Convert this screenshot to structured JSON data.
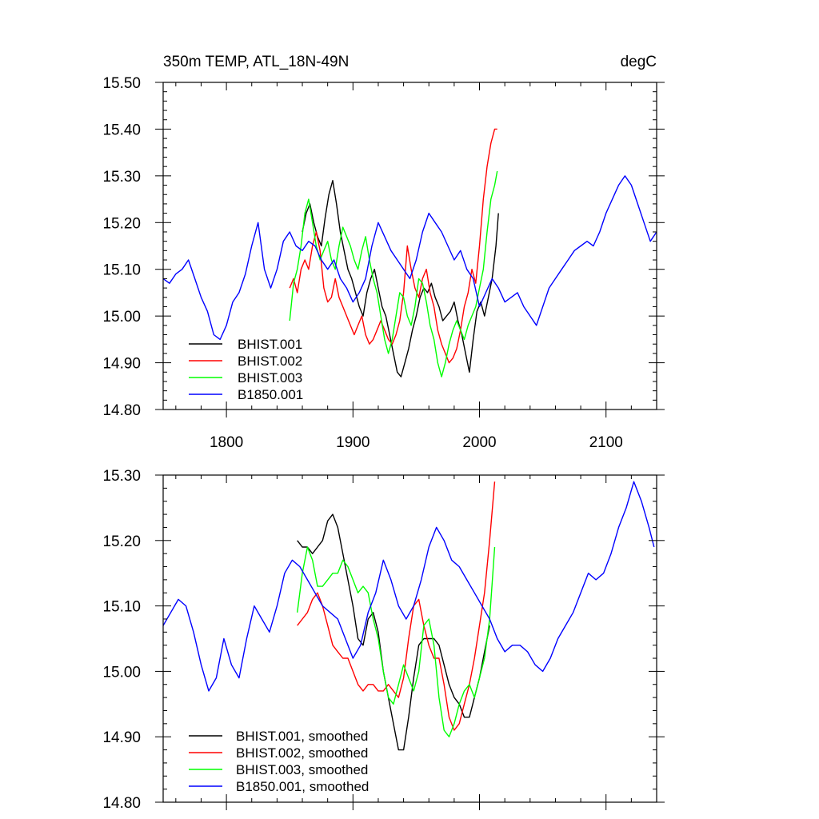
{
  "chart_data": [
    {
      "type": "line",
      "title_left": "350m TEMP, ATL_18N-49N",
      "title_right": "degC",
      "xlim": [
        1750,
        2140
      ],
      "ylim": [
        14.8,
        15.5
      ],
      "xticks": [
        1800,
        1900,
        2000,
        2100
      ],
      "xtick_labels": [
        "1800",
        "1900",
        "2000",
        "2100"
      ],
      "yticks": [
        14.8,
        14.9,
        15.0,
        15.1,
        15.2,
        15.3,
        15.4,
        15.5
      ],
      "ytick_labels": [
        "14.80",
        "14.90",
        "15.00",
        "15.10",
        "15.20",
        "15.30",
        "15.40",
        "15.50"
      ],
      "legend": "bottom-left",
      "series": [
        {
          "name": "BHIST.001",
          "color": "#000000",
          "x": [
            1860,
            1863,
            1866,
            1869,
            1872,
            1875,
            1878,
            1881,
            1884,
            1887,
            1890,
            1893,
            1896,
            1899,
            1902,
            1905,
            1908,
            1911,
            1914,
            1917,
            1920,
            1923,
            1926,
            1929,
            1932,
            1935,
            1938,
            1941,
            1944,
            1947,
            1950,
            1953,
            1956,
            1959,
            1962,
            1965,
            1968,
            1971,
            1974,
            1977,
            1980,
            1983,
            1986,
            1989,
            1992,
            1995,
            1998,
            2001,
            2004,
            2007,
            2010,
            2013,
            2015
          ],
          "y": [
            15.18,
            15.22,
            15.24,
            15.2,
            15.17,
            15.15,
            15.21,
            15.26,
            15.29,
            15.24,
            15.18,
            15.14,
            15.1,
            15.08,
            15.05,
            15.02,
            15.0,
            15.05,
            15.08,
            15.1,
            15.06,
            15.02,
            15.0,
            14.96,
            14.92,
            14.88,
            14.87,
            14.9,
            14.93,
            14.97,
            15.0,
            15.04,
            15.06,
            15.05,
            15.07,
            15.04,
            15.02,
            14.99,
            15.0,
            15.01,
            15.03,
            14.99,
            14.96,
            14.92,
            14.88,
            14.95,
            15.01,
            15.03,
            15.0,
            15.04,
            15.08,
            15.15,
            15.22
          ]
        },
        {
          "name": "BHIST.002",
          "color": "#ff0000",
          "x": [
            1850,
            1853,
            1856,
            1859,
            1862,
            1865,
            1868,
            1871,
            1874,
            1877,
            1880,
            1883,
            1886,
            1889,
            1892,
            1895,
            1898,
            1901,
            1904,
            1907,
            1910,
            1913,
            1916,
            1919,
            1922,
            1925,
            1928,
            1931,
            1934,
            1937,
            1940,
            1943,
            1946,
            1949,
            1952,
            1955,
            1958,
            1961,
            1964,
            1967,
            1970,
            1973,
            1976,
            1979,
            1982,
            1985,
            1988,
            1991,
            1994,
            1997,
            2000,
            2003,
            2006,
            2009,
            2012,
            2014
          ],
          "y": [
            15.06,
            15.08,
            15.05,
            15.1,
            15.12,
            15.1,
            15.15,
            15.18,
            15.14,
            15.06,
            15.03,
            15.04,
            15.08,
            15.04,
            15.02,
            15.0,
            14.98,
            14.96,
            14.98,
            15.0,
            14.96,
            14.94,
            14.95,
            14.97,
            14.99,
            14.97,
            14.95,
            14.94,
            14.96,
            14.99,
            15.05,
            15.15,
            15.1,
            15.06,
            15.04,
            15.08,
            15.1,
            15.05,
            15.02,
            14.97,
            14.94,
            14.92,
            14.9,
            14.91,
            14.93,
            14.97,
            15.02,
            15.05,
            15.1,
            15.07,
            15.15,
            15.25,
            15.32,
            15.37,
            15.4,
            15.4
          ]
        },
        {
          "name": "BHIST.003",
          "color": "#00ff00",
          "x": [
            1850,
            1853,
            1856,
            1859,
            1862,
            1865,
            1868,
            1871,
            1874,
            1877,
            1880,
            1883,
            1886,
            1889,
            1892,
            1895,
            1898,
            1901,
            1904,
            1907,
            1910,
            1913,
            1916,
            1919,
            1922,
            1925,
            1928,
            1931,
            1934,
            1937,
            1940,
            1943,
            1946,
            1949,
            1952,
            1955,
            1958,
            1961,
            1964,
            1967,
            1970,
            1973,
            1976,
            1979,
            1982,
            1985,
            1988,
            1991,
            1994,
            1997,
            2000,
            2003,
            2006,
            2009,
            2012,
            2014
          ],
          "y": [
            14.99,
            15.07,
            15.1,
            15.15,
            15.22,
            15.25,
            15.2,
            15.15,
            15.12,
            15.14,
            15.16,
            15.12,
            15.1,
            15.15,
            15.19,
            15.17,
            15.15,
            15.12,
            15.1,
            15.14,
            15.17,
            15.12,
            15.08,
            15.05,
            15.0,
            14.95,
            14.92,
            14.95,
            15.0,
            15.05,
            15.04,
            15.0,
            14.98,
            15.02,
            15.08,
            15.07,
            15.03,
            14.98,
            14.95,
            14.9,
            14.87,
            14.9,
            14.94,
            14.97,
            14.99,
            14.97,
            14.95,
            14.98,
            15.0,
            15.02,
            15.06,
            15.1,
            15.18,
            15.25,
            15.28,
            15.31
          ]
        },
        {
          "name": "B1850.001",
          "color": "#0000ff",
          "x": [
            1750,
            1755,
            1760,
            1765,
            1770,
            1775,
            1780,
            1785,
            1790,
            1795,
            1800,
            1805,
            1810,
            1815,
            1820,
            1825,
            1830,
            1835,
            1840,
            1845,
            1850,
            1855,
            1860,
            1865,
            1870,
            1875,
            1880,
            1885,
            1890,
            1895,
            1900,
            1905,
            1910,
            1915,
            1920,
            1925,
            1930,
            1935,
            1940,
            1945,
            1950,
            1955,
            1960,
            1965,
            1970,
            1975,
            1980,
            1985,
            1990,
            1995,
            2000,
            2005,
            2010,
            2015,
            2020,
            2025,
            2030,
            2035,
            2040,
            2045,
            2050,
            2055,
            2060,
            2065,
            2070,
            2075,
            2080,
            2085,
            2090,
            2095,
            2100,
            2105,
            2110,
            2115,
            2120,
            2125,
            2130,
            2135,
            2140
          ],
          "y": [
            15.08,
            15.07,
            15.09,
            15.1,
            15.12,
            15.08,
            15.04,
            15.01,
            14.96,
            14.95,
            14.98,
            15.03,
            15.05,
            15.09,
            15.15,
            15.2,
            15.1,
            15.06,
            15.1,
            15.16,
            15.18,
            15.15,
            15.14,
            15.16,
            15.15,
            15.12,
            15.1,
            15.12,
            15.08,
            15.06,
            15.03,
            15.05,
            15.08,
            15.15,
            15.2,
            15.17,
            15.14,
            15.12,
            15.1,
            15.08,
            15.12,
            15.18,
            15.22,
            15.2,
            15.18,
            15.15,
            15.12,
            15.14,
            15.1,
            15.08,
            15.02,
            15.05,
            15.08,
            15.06,
            15.03,
            15.04,
            15.05,
            15.02,
            15.0,
            14.98,
            15.02,
            15.06,
            15.08,
            15.1,
            15.12,
            15.14,
            15.15,
            15.16,
            15.15,
            15.18,
            15.22,
            15.25,
            15.28,
            15.3,
            15.28,
            15.24,
            15.2,
            15.16,
            15.18
          ]
        }
      ]
    },
    {
      "type": "line",
      "xlim": [
        1750,
        2140
      ],
      "ylim": [
        14.8,
        15.3
      ],
      "xticks": [
        1800,
        1900,
        2000,
        2100
      ],
      "yticks": [
        14.8,
        14.9,
        15.0,
        15.1,
        15.2,
        15.3
      ],
      "ytick_labels": [
        "14.80",
        "14.90",
        "15.00",
        "15.10",
        "15.20",
        "15.30"
      ],
      "legend": "bottom-left",
      "series": [
        {
          "name": "BHIST.001, smoothed",
          "color": "#000000",
          "x": [
            1856,
            1860,
            1864,
            1868,
            1872,
            1876,
            1880,
            1884,
            1888,
            1892,
            1896,
            1900,
            1904,
            1908,
            1912,
            1916,
            1920,
            1924,
            1928,
            1932,
            1936,
            1940,
            1944,
            1948,
            1952,
            1956,
            1960,
            1964,
            1968,
            1972,
            1976,
            1980,
            1984,
            1988,
            1992,
            1996,
            2000,
            2004,
            2008
          ],
          "y": [
            15.2,
            15.19,
            15.19,
            15.18,
            15.19,
            15.2,
            15.23,
            15.24,
            15.22,
            15.18,
            15.14,
            15.1,
            15.05,
            15.04,
            15.08,
            15.09,
            15.06,
            15.0,
            14.96,
            14.92,
            14.88,
            14.88,
            14.93,
            14.99,
            15.04,
            15.05,
            15.05,
            15.05,
            15.04,
            15.01,
            14.98,
            14.96,
            14.95,
            14.93,
            14.93,
            14.96,
            14.99,
            15.03,
            15.07
          ]
        },
        {
          "name": "BHIST.002, smoothed",
          "color": "#ff0000",
          "x": [
            1856,
            1860,
            1864,
            1868,
            1872,
            1876,
            1880,
            1884,
            1888,
            1892,
            1896,
            1900,
            1904,
            1908,
            1912,
            1916,
            1920,
            1924,
            1928,
            1932,
            1936,
            1940,
            1944,
            1948,
            1952,
            1956,
            1960,
            1964,
            1968,
            1972,
            1976,
            1980,
            1984,
            1988,
            1992,
            1996,
            2000,
            2004,
            2008,
            2012
          ],
          "y": [
            15.07,
            15.08,
            15.09,
            15.11,
            15.12,
            15.1,
            15.07,
            15.04,
            15.03,
            15.02,
            15.02,
            15.0,
            14.98,
            14.97,
            14.98,
            14.98,
            14.97,
            14.97,
            14.98,
            14.97,
            14.96,
            14.99,
            15.05,
            15.1,
            15.11,
            15.07,
            15.04,
            15.02,
            15.02,
            14.98,
            14.93,
            14.91,
            14.92,
            14.95,
            14.98,
            15.02,
            15.07,
            15.12,
            15.2,
            15.29
          ]
        },
        {
          "name": "BHIST.003, smoothed",
          "color": "#00ff00",
          "x": [
            1856,
            1860,
            1864,
            1868,
            1872,
            1876,
            1880,
            1884,
            1888,
            1892,
            1896,
            1900,
            1904,
            1908,
            1912,
            1916,
            1920,
            1924,
            1928,
            1932,
            1936,
            1940,
            1944,
            1948,
            1952,
            1956,
            1960,
            1964,
            1968,
            1972,
            1976,
            1980,
            1984,
            1988,
            1992,
            1996,
            2000,
            2004,
            2008,
            2012
          ],
          "y": [
            15.09,
            15.15,
            15.19,
            15.17,
            15.13,
            15.13,
            15.14,
            15.15,
            15.15,
            15.17,
            15.16,
            15.14,
            15.12,
            15.13,
            15.12,
            15.08,
            15.05,
            15.0,
            14.96,
            14.95,
            14.98,
            15.01,
            14.99,
            14.97,
            15.0,
            15.07,
            15.08,
            15.04,
            14.96,
            14.91,
            14.9,
            14.92,
            14.95,
            14.97,
            14.98,
            14.96,
            14.99,
            15.02,
            15.08,
            15.19
          ]
        },
        {
          "name": "B1850.001, smoothed",
          "color": "#0000ff",
          "x": [
            1750,
            1756,
            1762,
            1768,
            1774,
            1780,
            1786,
            1792,
            1798,
            1804,
            1810,
            1816,
            1822,
            1828,
            1834,
            1840,
            1846,
            1852,
            1858,
            1864,
            1870,
            1876,
            1882,
            1888,
            1894,
            1900,
            1906,
            1912,
            1918,
            1924,
            1930,
            1936,
            1942,
            1948,
            1954,
            1960,
            1966,
            1972,
            1978,
            1984,
            1990,
            1996,
            2002,
            2008,
            2014,
            2020,
            2026,
            2032,
            2038,
            2044,
            2050,
            2056,
            2062,
            2068,
            2074,
            2080,
            2086,
            2092,
            2098,
            2104,
            2110,
            2116,
            2122,
            2128,
            2134,
            2138
          ],
          "y": [
            15.07,
            15.09,
            15.11,
            15.1,
            15.06,
            15.01,
            14.97,
            14.99,
            15.05,
            15.01,
            14.99,
            15.05,
            15.1,
            15.08,
            15.06,
            15.1,
            15.15,
            15.17,
            15.16,
            15.14,
            15.12,
            15.1,
            15.09,
            15.08,
            15.05,
            15.02,
            15.04,
            15.09,
            15.12,
            15.17,
            15.14,
            15.1,
            15.08,
            15.1,
            15.14,
            15.19,
            15.22,
            15.2,
            15.17,
            15.16,
            15.14,
            15.12,
            15.1,
            15.08,
            15.05,
            15.03,
            15.04,
            15.04,
            15.03,
            15.01,
            15.0,
            15.02,
            15.05,
            15.07,
            15.09,
            15.12,
            15.15,
            15.14,
            15.15,
            15.18,
            15.22,
            15.25,
            15.29,
            15.26,
            15.22,
            15.19
          ]
        }
      ]
    }
  ]
}
